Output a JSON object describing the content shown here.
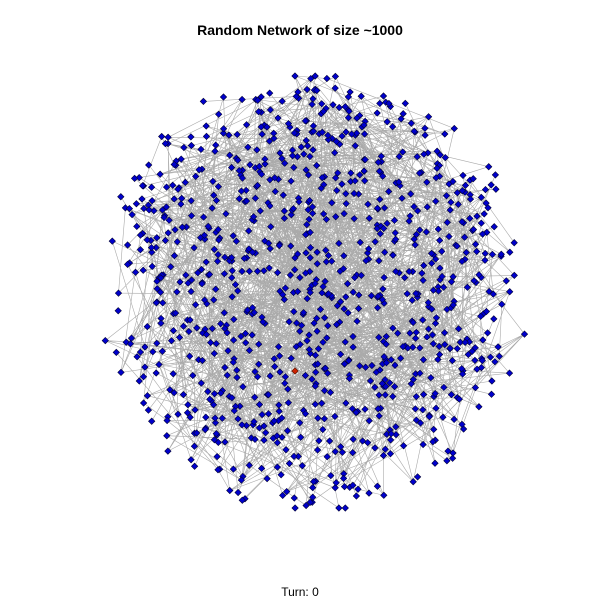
{
  "title": "Random Network of size ~1000",
  "turn_label": "Turn: 0",
  "colors": {
    "edge": "#aaaaaa",
    "node_fill": "#0000cc",
    "node_stroke": "#000033",
    "highlight_node": "#cc2200"
  },
  "network": {
    "node_count": 1000,
    "shape": "diamond",
    "highlighted_nodes": 1
  }
}
